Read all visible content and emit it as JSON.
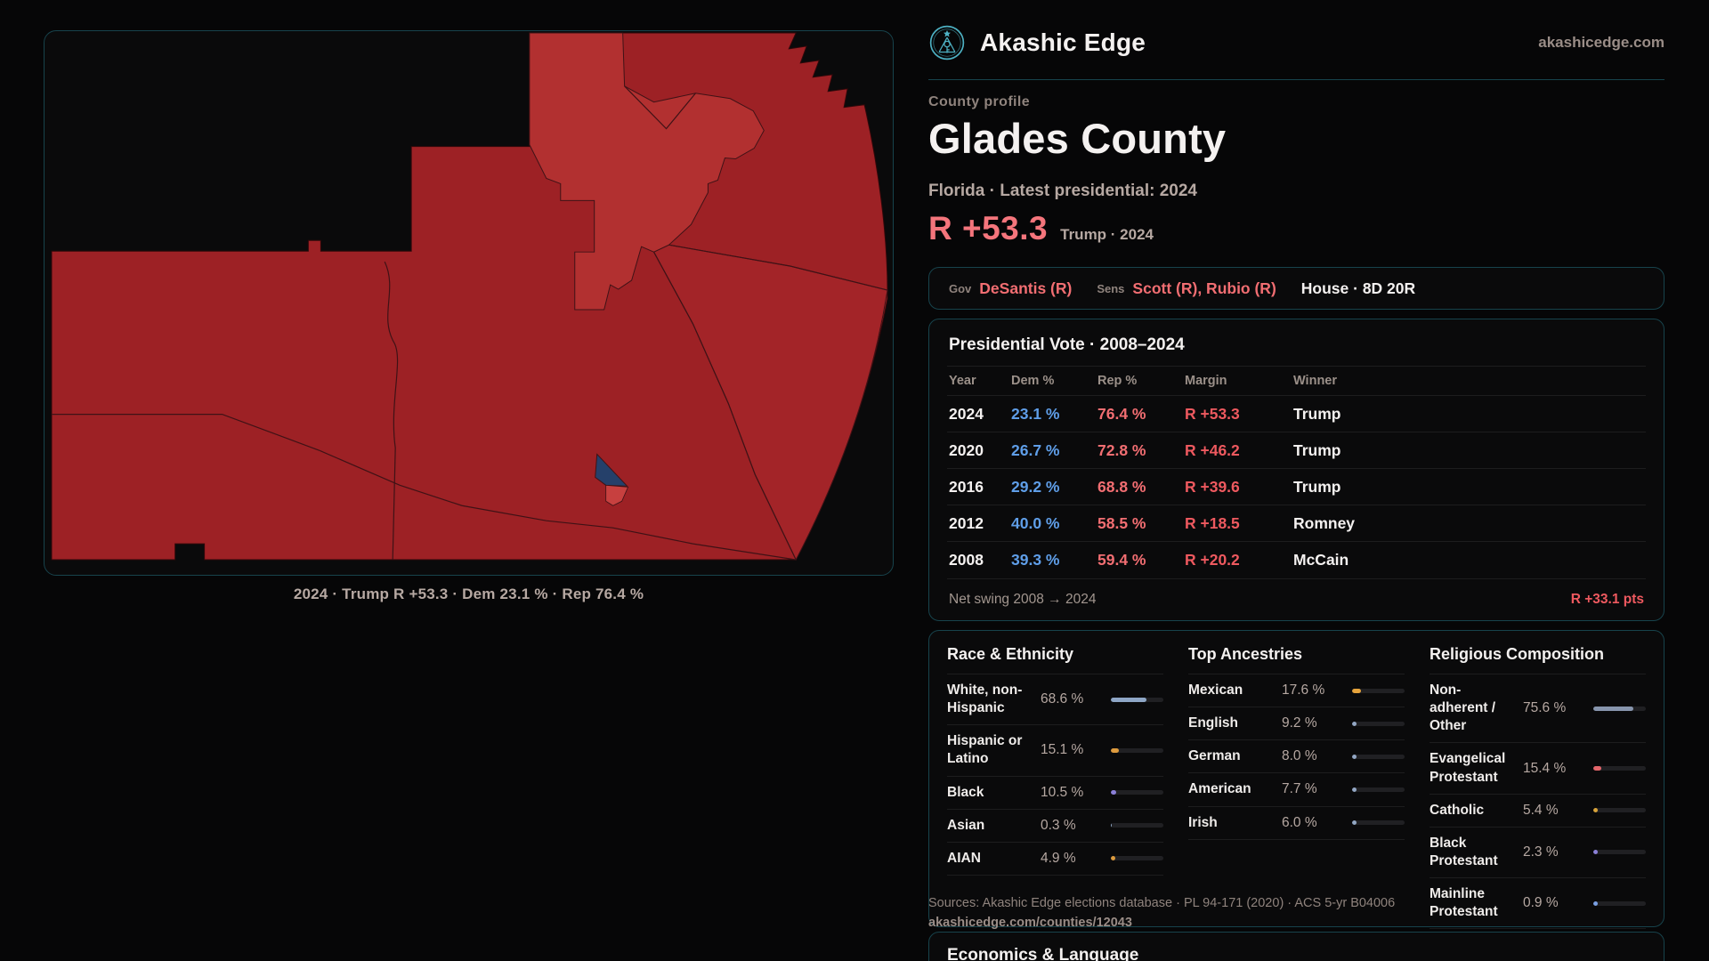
{
  "colors": {
    "page-bg": "#060607",
    "panel-bg": "#0a0a0b",
    "teal-border": "#17434c",
    "brand-teal": "#4db0c2",
    "text-white": "#f4f1f0",
    "text-gray": "#b6a8a2",
    "text-dim": "#8f837d",
    "accent-red": "#f4757c",
    "table-dem": "#5f9ee8",
    "table-rep": "#f26e72",
    "table-margin": "#ee595f",
    "map-red": "#9d2125",
    "map-red-light": "#b23030",
    "map-red-east": "#a32428",
    "map-red-bright": "#c7403f",
    "map-navy": "#25406a"
  },
  "header": {
    "brand": "Akashic Edge",
    "domain": "akashicedge.com"
  },
  "profile": {
    "kicker": "County profile",
    "title": "Glades County",
    "meta": "Florida · Latest presidential: 2024",
    "margin": "R +53.3",
    "margin_context": "Trump · 2024"
  },
  "officials": {
    "gov_label": "Gov",
    "gov_value": "DeSantis (R)",
    "sens_label": "Sens",
    "sens_value": "Scott (R), Rubio (R)",
    "house_value": "House · 8D 20R"
  },
  "map": {
    "caption": "2024 · Trump R +53.3 · Dem 23.1 % · Rep 76.4 %"
  },
  "vote_table": {
    "title": "Presidential Vote · 2008–2024",
    "columns": [
      "Year",
      "Dem %",
      "Rep %",
      "Margin",
      "Winner"
    ],
    "rows": [
      {
        "year": "2024",
        "dem": "23.1 %",
        "rep": "76.4 %",
        "margin": "R +53.3",
        "winner": "Trump"
      },
      {
        "year": "2020",
        "dem": "26.7 %",
        "rep": "72.8 %",
        "margin": "R +46.2",
        "winner": "Trump"
      },
      {
        "year": "2016",
        "dem": "29.2 %",
        "rep": "68.8 %",
        "margin": "R +39.6",
        "winner": "Trump"
      },
      {
        "year": "2012",
        "dem": "40.0 %",
        "rep": "58.5 %",
        "margin": "R +18.5",
        "winner": "Romney"
      },
      {
        "year": "2008",
        "dem": "39.3 %",
        "rep": "59.4 %",
        "margin": "R +20.2",
        "winner": "McCain"
      }
    ],
    "footer": {
      "label": "Net swing 2008 → 2024",
      "value": "R +33.1 pts"
    }
  },
  "demographics": {
    "race": {
      "title": "Race & Ethnicity",
      "rows": [
        {
          "label": "White, non-Hispanic",
          "value": "68.6 %",
          "pct": 68.6,
          "color": "#8ea6c6"
        },
        {
          "label": "Hispanic or Latino",
          "value": "15.1 %",
          "pct": 15.1,
          "color": "#dd9b3e"
        },
        {
          "label": "Black",
          "value": "10.5 %",
          "pct": 10.5,
          "color": "#8b80d8"
        },
        {
          "label": "Asian",
          "value": "0.3 %",
          "pct": 0.3,
          "color": "#8ea6c6"
        },
        {
          "label": "AIAN",
          "value": "4.9 %",
          "pct": 4.9,
          "color": "#dd9b3e"
        }
      ]
    },
    "ancestries": {
      "title": "Top Ancestries",
      "rows": [
        {
          "label": "Mexican",
          "value": "17.6 %",
          "pct": 17.6,
          "color": "#e5a33c"
        },
        {
          "label": "English",
          "value": "9.2 %",
          "pct": 9.2,
          "color": "#93a7c4"
        },
        {
          "label": "German",
          "value": "8.0 %",
          "pct": 8.0,
          "color": "#93a7c4"
        },
        {
          "label": "American",
          "value": "7.7 %",
          "pct": 7.7,
          "color": "#93a7c4"
        },
        {
          "label": "Irish",
          "value": "6.0 %",
          "pct": 6.0,
          "color": "#93a7c4"
        }
      ]
    },
    "religion": {
      "title": "Religious Composition",
      "rows": [
        {
          "label": "Non-adherent / Other",
          "value": "75.6 %",
          "pct": 75.6,
          "color": "#8795ad"
        },
        {
          "label": "Evangelical Protestant",
          "value": "15.4 %",
          "pct": 15.4,
          "color": "#e4666b"
        },
        {
          "label": "Catholic",
          "value": "5.4 %",
          "pct": 5.4,
          "color": "#d9a43a"
        },
        {
          "label": "Black Protestant",
          "value": "2.3 %",
          "pct": 2.3,
          "color": "#8b80d8"
        },
        {
          "label": "Mainline Protestant",
          "value": "0.9 %",
          "pct": 0.9,
          "color": "#7aa0e4"
        }
      ]
    }
  },
  "sources": {
    "line1": "Sources: Akashic Edge elections database · PL 94-171 (2020) · ACS 5-yr B04006",
    "line2": "akashicedge.com/counties/12043"
  },
  "economics": {
    "title": "Economics & Language"
  }
}
